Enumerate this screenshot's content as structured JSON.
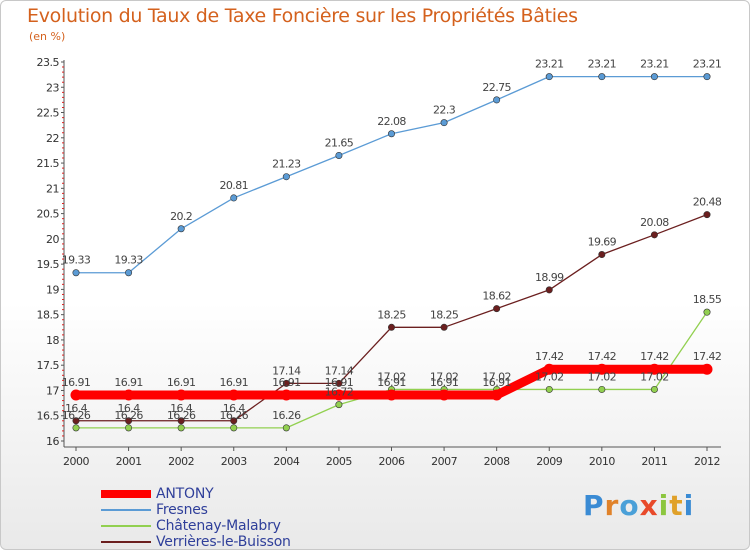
{
  "header": {
    "title": "Evolution du Taux de Taxe Foncière sur les Propriétés Bâties",
    "subtitle": "(en %)"
  },
  "logo": {
    "text": "Proxiti"
  },
  "chart_data": {
    "type": "line",
    "x": [
      "2000",
      "2001",
      "2002",
      "2003",
      "2004",
      "2005",
      "2006",
      "2007",
      "2008",
      "2009",
      "2010",
      "2011",
      "2012"
    ],
    "ylim": [
      16,
      23.5
    ],
    "yticks": [
      "16",
      "16.5",
      "17",
      "17.5",
      "18",
      "18.5",
      "19",
      "19.5",
      "20",
      "20.5",
      "21",
      "21.5",
      "22",
      "22.5",
      "23",
      "23.5"
    ],
    "grid": false,
    "legend_position": "bottom-left",
    "series": [
      {
        "name": "ANTONY",
        "color": "#ff0000",
        "values": [
          16.91,
          16.91,
          16.91,
          16.91,
          16.91,
          16.91,
          16.91,
          16.91,
          16.91,
          17.42,
          17.42,
          17.42,
          17.42
        ],
        "labels": [
          "16.91",
          "16.91",
          "16.91",
          "16.91",
          "16.91",
          "16.91",
          "16.91",
          "16.91",
          "16.91",
          "17.42",
          "17.42",
          "17.42",
          "17.42"
        ]
      },
      {
        "name": "Fresnes",
        "color": "#5b9bd5",
        "values": [
          19.33,
          19.33,
          20.2,
          20.81,
          21.23,
          21.65,
          22.08,
          22.3,
          22.75,
          23.21,
          23.21,
          23.21,
          23.21
        ],
        "labels": [
          "19.33",
          "19.33",
          "20.2",
          "20.81",
          "21.23",
          "21.65",
          "22.08",
          "22.3",
          "22.75",
          "23.21",
          "23.21",
          "23.21",
          "23.21"
        ]
      },
      {
        "name": "Châtenay-Malabry",
        "color": "#92d050",
        "values": [
          16.26,
          16.26,
          16.26,
          16.26,
          16.26,
          16.72,
          17.02,
          17.02,
          17.02,
          17.02,
          17.02,
          17.02,
          18.55
        ],
        "labels": [
          "16.26",
          "16.26",
          "16.26",
          "16.26",
          "16.26",
          "16.72",
          "17.02",
          "17.02",
          "17.02",
          "17.02",
          "17.02",
          "17.02",
          "18.55"
        ]
      },
      {
        "name": "Verrières-le-Buisson",
        "color": "#6b1f1f",
        "values": [
          16.4,
          16.4,
          16.4,
          16.4,
          17.14,
          17.14,
          18.25,
          18.25,
          18.62,
          18.99,
          19.69,
          20.08,
          20.48
        ],
        "labels": [
          "16.4",
          "16.4",
          "16.4",
          "16.4",
          "17.14",
          "17.14",
          "18.25",
          "18.25",
          "18.62",
          "18.99",
          "19.69",
          "20.08",
          "20.48"
        ]
      }
    ]
  }
}
